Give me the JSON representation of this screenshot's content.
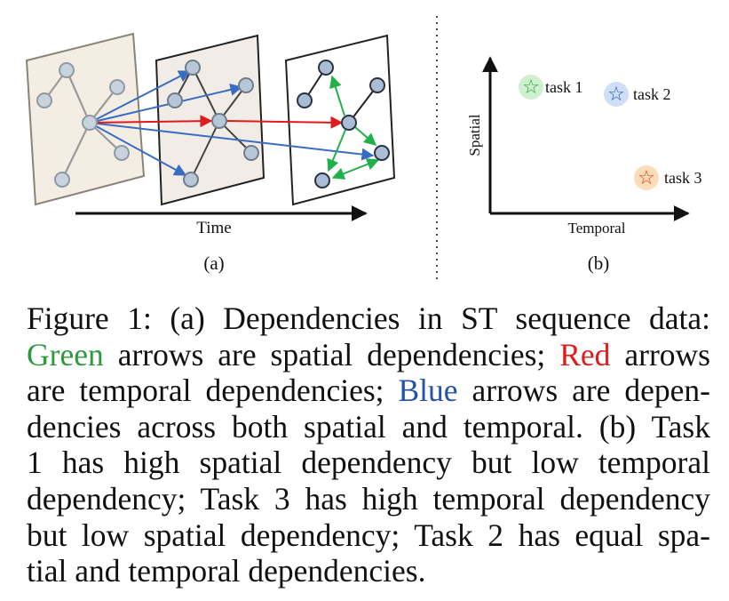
{
  "panel_a": {
    "axis_label": "Time",
    "sublabel": "(a)"
  },
  "panel_b": {
    "xlabel": "Temporal",
    "ylabel": "Spatial",
    "sublabel": "(b)",
    "tasks": [
      {
        "label": "task 1",
        "color": "#3fc43a"
      },
      {
        "label": "task 2",
        "color": "#3f7fe0"
      },
      {
        "label": "task 3",
        "color": "#f08a1c"
      }
    ]
  },
  "colors": {
    "spatial": "#2e9a3e",
    "temporal": "#e01b1b",
    "both": "#2553a8",
    "node_fill": "#a9bdd6"
  },
  "caption": {
    "l1": "Figure 1: (a) Dependencies in ST sequence data:",
    "l2_green": "Green",
    "l2_a": " arrows are spatial dependencies; ",
    "l2_red": "Red",
    "l2_b": " arrows",
    "l3_a": "are temporal dependencies; ",
    "l3_blue": "Blue",
    "l3_b": " arrows are depen-",
    "l4": "dencies across both spatial and temporal. (b) Task",
    "l5": "1 has high spatial dependency but low temporal",
    "l6": "dependency; Task 3 has high temporal dependency",
    "l7": "but low spatial dependency; Task 2 has equal spa-",
    "l8": "tial and temporal dependencies."
  }
}
